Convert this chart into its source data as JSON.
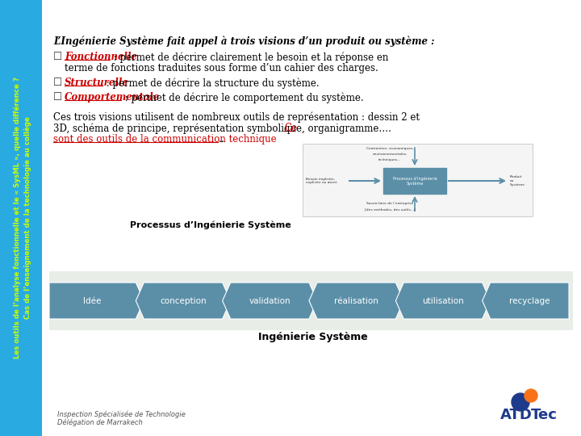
{
  "sidebar_color": "#29ABE2",
  "sidebar_text_line1": "Les outils de l’analyse fonctionnelle et le « SysML », quelle différence ?",
  "sidebar_text_line2": "Cas de l’enseignement de la technologie au collège",
  "sidebar_text_color": "#CCFF00",
  "bg_color": "#FFFFFF",
  "title_text": "L’Ingénierie Système fait appel à trois visions d’un produit ou système :",
  "bullet1_label": "Fonctionnelle",
  "bullet1_rest": " : permet de décrire clairement le besoin et la réponse en",
  "bullet1_cont": "terme de fonctions traduites sous forme d’un cahier des charges.",
  "bullet2_label": "Structurelle",
  "bullet2_rest": " : permet de décrire la structure du système.",
  "bullet3_label": "Comportementale",
  "bullet3_rest": " : permet de décrire le comportement du système.",
  "para2_line1": "Ces trois visions utilisent de nombreux outils de représentation : dessin 2 et",
  "para2_line2a": "3D, schéma de principe, représentation symbolique, organigramme…. ",
  "para2_link1": "Ce",
  "para2_line3": "sont des outils de la communication technique",
  "para2_end": "..",
  "process_label": "Processus d’Ingénierie Système",
  "arrow_steps": [
    "Idée",
    "conception",
    "validation",
    "réalisation",
    "utilisation",
    "recyclage"
  ],
  "arrow_color": "#5B8FA8",
  "arrow_bg": "#E8EDE8",
  "ingenierie_label": "Ingénierie Système",
  "footer_line1": "Inspection Spécialisée de Technologie",
  "footer_line2": "Délégation de Marrakech",
  "text_color": "#000000",
  "red_color": "#CC0000",
  "diag_labels_top": [
    "Contraintes: économiques,",
    "environnementales,",
    "techniques..."
  ],
  "diag_label_left1": "Besoin implicite,",
  "diag_label_left2": "explicite ou atent",
  "diag_label_right1": "Produit",
  "diag_label_right2": "ou",
  "diag_label_right3": "Système",
  "diag_label_bottom1": "Savoir-faire de l’entreprise",
  "diag_label_bottom2": "[des méthodes, des outils...]",
  "diag_center_text": "Processus d’Ingénierie Système"
}
